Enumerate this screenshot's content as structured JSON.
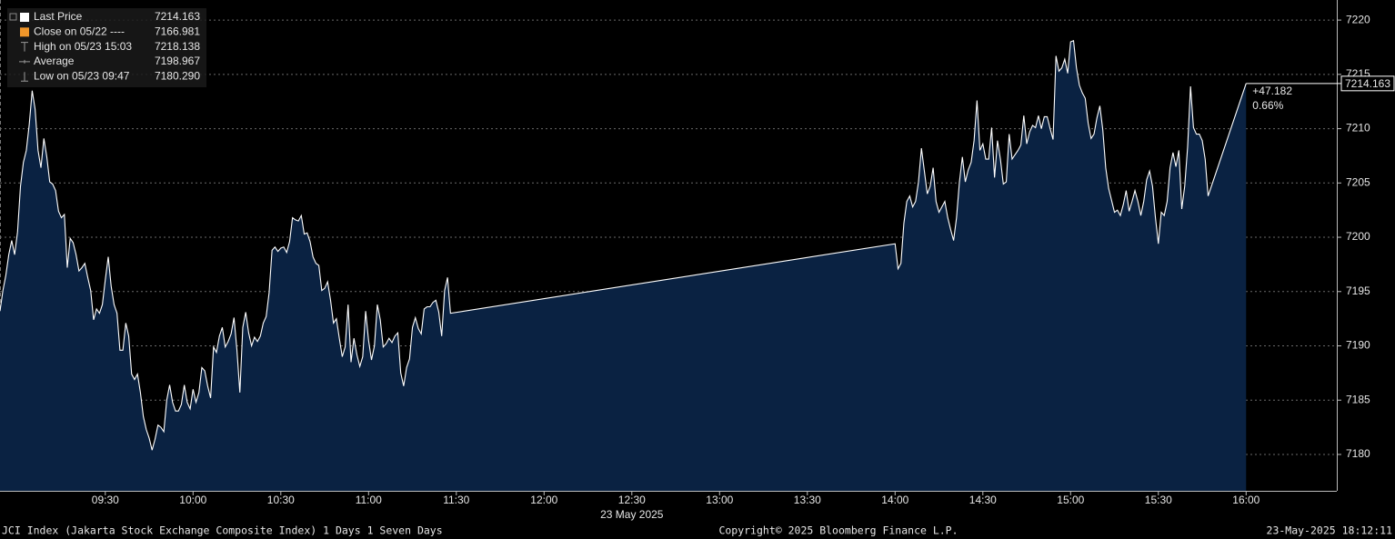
{
  "chart_data": {
    "type": "area",
    "x": [
      "08:54",
      "08:55",
      "08:56",
      "08:57",
      "08:58",
      "08:59",
      "09:00",
      "09:01",
      "09:02",
      "09:03",
      "09:04",
      "09:05",
      "09:06",
      "09:07",
      "09:08",
      "09:09",
      "09:10",
      "09:11",
      "09:12",
      "09:13",
      "09:14",
      "09:15",
      "09:16",
      "09:17",
      "09:18",
      "09:19",
      "09:20",
      "09:21",
      "09:22",
      "09:23",
      "09:24",
      "09:25",
      "09:26",
      "09:27",
      "09:28",
      "09:29",
      "09:30",
      "09:31",
      "09:32",
      "09:33",
      "09:34",
      "09:35",
      "09:36",
      "09:37",
      "09:38",
      "09:39",
      "09:40",
      "09:41",
      "09:42",
      "09:43",
      "09:44",
      "09:45",
      "09:46",
      "09:47",
      "09:48",
      "09:49",
      "09:50",
      "09:51",
      "09:52",
      "09:53",
      "09:54",
      "09:55",
      "09:56",
      "09:57",
      "09:58",
      "09:59",
      "10:00",
      "10:01",
      "10:02",
      "10:03",
      "10:04",
      "10:05",
      "10:06",
      "10:07",
      "10:08",
      "10:09",
      "10:10",
      "10:11",
      "10:12",
      "10:13",
      "10:14",
      "10:15",
      "10:16",
      "10:17",
      "10:18",
      "10:19",
      "10:20",
      "10:21",
      "10:22",
      "10:23",
      "10:24",
      "10:25",
      "10:26",
      "10:27",
      "10:28",
      "10:29",
      "10:30",
      "10:31",
      "10:32",
      "10:33",
      "10:34",
      "10:35",
      "10:36",
      "10:37",
      "10:38",
      "10:39",
      "10:40",
      "10:41",
      "10:42",
      "10:43",
      "10:44",
      "10:45",
      "10:46",
      "10:47",
      "10:48",
      "10:49",
      "10:50",
      "10:51",
      "10:52",
      "10:53",
      "10:54",
      "10:55",
      "10:56",
      "10:57",
      "10:58",
      "10:59",
      "11:00",
      "11:01",
      "11:02",
      "11:03",
      "11:04",
      "11:05",
      "11:06",
      "11:07",
      "11:08",
      "11:09",
      "11:10",
      "11:11",
      "11:12",
      "11:13",
      "11:14",
      "11:15",
      "11:16",
      "11:17",
      "11:18",
      "11:19",
      "11:20",
      "11:21",
      "11:22",
      "11:23",
      "11:24",
      "11:25",
      "11:26",
      "11:27",
      "11:28",
      "14:00",
      "14:01",
      "14:02",
      "14:03",
      "14:04",
      "14:05",
      "14:06",
      "14:07",
      "14:08",
      "14:09",
      "14:10",
      "14:11",
      "14:12",
      "14:13",
      "14:14",
      "14:15",
      "14:16",
      "14:17",
      "14:18",
      "14:19",
      "14:20",
      "14:21",
      "14:22",
      "14:23",
      "14:24",
      "14:25",
      "14:26",
      "14:27",
      "14:28",
      "14:29",
      "14:30",
      "14:31",
      "14:32",
      "14:33",
      "14:34",
      "14:35",
      "14:36",
      "14:37",
      "14:38",
      "14:39",
      "14:40",
      "14:41",
      "14:42",
      "14:43",
      "14:44",
      "14:45",
      "14:46",
      "14:47",
      "14:48",
      "14:49",
      "14:50",
      "14:51",
      "14:52",
      "14:53",
      "14:54",
      "14:55",
      "14:56",
      "14:57",
      "14:58",
      "14:59",
      "15:00",
      "15:01",
      "15:02",
      "15:03",
      "15:04",
      "15:05",
      "15:06",
      "15:07",
      "15:08",
      "15:09",
      "15:10",
      "15:11",
      "15:12",
      "15:13",
      "15:14",
      "15:15",
      "15:16",
      "15:17",
      "15:18",
      "15:19",
      "15:20",
      "15:21",
      "15:22",
      "15:23",
      "15:24",
      "15:25",
      "15:26",
      "15:27",
      "15:28",
      "15:29",
      "15:30",
      "15:31",
      "15:32",
      "15:33",
      "15:34",
      "15:35",
      "15:36",
      "15:37",
      "15:38",
      "15:39",
      "15:40",
      "15:41",
      "15:42",
      "15:43",
      "15:44",
      "15:45",
      "15:46",
      "15:47",
      "16:00"
    ],
    "series": [
      {
        "name": "Last Price",
        "color": "#ffffff",
        "fill": "#0a2242",
        "values": [
          7193.2,
          7195.1,
          7196.5,
          7198.4,
          7199.7,
          7198.4,
          7200.5,
          7204.7,
          7206.9,
          7208.0,
          7210.4,
          7213.5,
          7211.8,
          7208.0,
          7206.4,
          7209.1,
          7207.4,
          7205.1,
          7204.9,
          7204.3,
          7202.4,
          7201.8,
          7202.1,
          7197.2,
          7199.9,
          7199.5,
          7198.4,
          7196.9,
          7197.2,
          7197.6,
          7196.3,
          7195.1,
          7192.4,
          7193.4,
          7193.0,
          7193.8,
          7196.1,
          7198.2,
          7195.5,
          7193.8,
          7193.0,
          7189.6,
          7189.6,
          7192.1,
          7190.9,
          7187.4,
          7186.9,
          7187.4,
          7185.7,
          7183.5,
          7182.3,
          7181.5,
          7180.4,
          7181.4,
          7182.7,
          7182.5,
          7182.1,
          7185.0,
          7186.4,
          7184.8,
          7184.0,
          7184.0,
          7184.6,
          7186.4,
          7184.8,
          7184.2,
          7186.0,
          7184.8,
          7185.7,
          7188.0,
          7187.7,
          7186.3,
          7185.2,
          7189.9,
          7189.4,
          7190.9,
          7191.7,
          7189.9,
          7190.4,
          7191.1,
          7192.6,
          7189.6,
          7185.7,
          7191.7,
          7193.1,
          7191.2,
          7190.0,
          7190.8,
          7190.4,
          7190.9,
          7192.1,
          7192.7,
          7194.9,
          7198.8,
          7199.1,
          7198.7,
          7199.0,
          7199.1,
          7198.6,
          7199.6,
          7201.8,
          7201.6,
          7201.5,
          7202.0,
          7200.3,
          7200.4,
          7199.6,
          7198.2,
          7197.6,
          7197.4,
          7195.1,
          7195.3,
          7195.9,
          7194.2,
          7192.1,
          7192.5,
          7190.7,
          7189.0,
          7189.9,
          7193.8,
          7188.5,
          7190.7,
          7189.2,
          7188.1,
          7189.0,
          7193.2,
          7190.5,
          7188.7,
          7190.0,
          7193.8,
          7192.4,
          7189.9,
          7190.2,
          7190.7,
          7190.3,
          7190.9,
          7191.2,
          7187.5,
          7186.3,
          7188.0,
          7188.8,
          7191.7,
          7192.6,
          7191.6,
          7191.1,
          7193.4,
          7193.6,
          7193.6,
          7194.0,
          7194.2,
          7193.1,
          7190.9,
          7195.1,
          7196.3,
          7193.0,
          7199.4,
          7197.1,
          7197.6,
          7201.3,
          7203.3,
          7203.8,
          7202.8,
          7203.3,
          7205.1,
          7208.2,
          7206.1,
          7204.0,
          7204.7,
          7206.4,
          7203.3,
          7202.3,
          7202.8,
          7203.3,
          7201.8,
          7200.7,
          7199.7,
          7201.8,
          7205.1,
          7207.4,
          7205.1,
          7206.2,
          7206.9,
          7208.9,
          7212.6,
          7208.0,
          7208.6,
          7207.2,
          7207.2,
          7210.1,
          7205.5,
          7208.9,
          7207.2,
          7204.9,
          7205.1,
          7209.5,
          7207.2,
          7207.6,
          7208.0,
          7208.5,
          7211.2,
          7208.6,
          7209.7,
          7210.3,
          7210.1,
          7211.2,
          7210.0,
          7211.1,
          7211.1,
          7210.0,
          7209.0,
          7216.7,
          7215.3,
          7215.6,
          7216.4,
          7215.1,
          7218.0,
          7218.1,
          7215.6,
          7214.0,
          7213.3,
          7212.8,
          7210.5,
          7209.1,
          7209.5,
          7211.0,
          7212.1,
          7209.9,
          7206.4,
          7204.5,
          7203.4,
          7202.3,
          7202.5,
          7202.0,
          7203.0,
          7204.3,
          7202.4,
          7203.3,
          7204.3,
          7203.3,
          7202.0,
          7203.3,
          7205.3,
          7206.1,
          7204.7,
          7201.8,
          7199.4,
          7202.3,
          7202.0,
          7203.3,
          7206.4,
          7207.8,
          7206.5,
          7208.0,
          7202.6,
          7204.7,
          7208.3,
          7213.9,
          7210.1,
          7209.5,
          7209.5,
          7208.9,
          7207.2,
          7203.8,
          7214.163
        ]
      }
    ],
    "xlim": [
      "08:54",
      "16:31"
    ],
    "xticks": [
      "09:30",
      "10:00",
      "10:30",
      "11:00",
      "11:30",
      "12:00",
      "12:30",
      "13:00",
      "13:30",
      "14:00",
      "14:30",
      "15:00",
      "15:30",
      "16:00"
    ],
    "xlabel": "23 May 2025",
    "ylim": [
      7176.65,
      7221.85
    ],
    "yticks": [
      7180,
      7185,
      7190,
      7195,
      7200,
      7205,
      7210,
      7215,
      7220
    ],
    "grid": true,
    "legend_position": "upper left",
    "legend": [
      {
        "label": "Close on 05/22 ----",
        "value": 7166.981,
        "color": "#f0962a"
      },
      {
        "label": "High on 05/23 15:03",
        "value": 7218.138
      },
      {
        "label": "Average",
        "value": 7198.967
      },
      {
        "label": "Low on 05/23 09:47",
        "value": {
          "value": 7180.29,
          "label": "7180.290"
        }
      }
    ],
    "change": {
      "value": 47.182,
      "label": "+47.182"
    },
    "change_pct": {
      "value": 0.66,
      "label": "0.66%"
    },
    "annotation_color": "#f0962a"
  },
  "footer": {
    "left": "JCI Index (Jakarta Stock Exchange Composite Index) 1 Days 1 Seven Days",
    "center": "Copyright© 2025 Bloomberg Finance L.P.",
    "right": "23-May-2025 18:12:11"
  }
}
